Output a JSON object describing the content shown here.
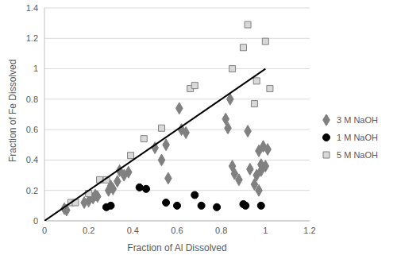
{
  "chart_data": {
    "type": "scatter",
    "x_label": "Fraction of Al Dissolved",
    "y_label": "Fraction of Fe Dissolved",
    "xlim": [
      0,
      1.2
    ],
    "xticks": [
      0,
      0.2,
      0.4,
      0.6,
      0.8,
      1,
      1.2
    ],
    "ylim": [
      0,
      1.4
    ],
    "yticks": [
      0,
      0.2,
      0.4,
      0.6,
      0.8,
      1,
      1.2,
      1.4
    ],
    "grid": true,
    "legend": "right",
    "series": [
      {
        "name": "3 M NaOH",
        "color": "#808080",
        "marker": "diamond",
        "x": [
          0.09,
          0.1,
          0.18,
          0.2,
          0.22,
          0.23,
          0.24,
          0.29,
          0.3,
          0.31,
          0.33,
          0.34,
          0.36,
          0.38,
          0.5,
          0.53,
          0.55,
          0.56,
          0.61,
          0.62,
          0.64,
          0.82,
          0.83,
          0.84,
          0.85,
          0.86,
          0.88,
          0.92,
          0.93,
          0.95,
          0.96,
          0.97,
          0.98,
          0.98,
          0.99,
          1.0,
          1.01,
          0.97
        ],
        "values": [
          0.08,
          0.07,
          0.12,
          0.13,
          0.15,
          0.17,
          0.16,
          0.2,
          0.23,
          0.21,
          0.26,
          0.33,
          0.3,
          0.32,
          0.48,
          0.4,
          0.5,
          0.28,
          0.74,
          0.6,
          0.58,
          0.67,
          0.61,
          0.8,
          0.36,
          0.31,
          0.27,
          0.59,
          0.34,
          0.24,
          0.3,
          0.2,
          0.33,
          0.37,
          0.49,
          0.36,
          0.47,
          0.46
        ]
      },
      {
        "name": "1 M NaOH",
        "color": "#000000",
        "marker": "circle",
        "x": [
          0.28,
          0.3,
          0.43,
          0.46,
          0.55,
          0.6,
          0.68,
          0.71,
          0.78,
          0.9,
          0.91,
          0.98
        ],
        "values": [
          0.09,
          0.1,
          0.22,
          0.21,
          0.12,
          0.1,
          0.17,
          0.1,
          0.09,
          0.11,
          0.1,
          0.1
        ]
      },
      {
        "name": "5 M NaOH",
        "color": "#d9d9d9",
        "marker": "square",
        "x": [
          0.12,
          0.14,
          0.2,
          0.25,
          0.28,
          0.39,
          0.45,
          0.53,
          0.66,
          0.68,
          0.85,
          0.9,
          0.92,
          0.95,
          0.96,
          1.0,
          1.02
        ],
        "values": [
          0.12,
          0.12,
          0.18,
          0.27,
          0.27,
          0.43,
          0.54,
          0.61,
          0.87,
          0.89,
          1.0,
          1.14,
          1.29,
          0.77,
          0.92,
          1.18,
          0.87
        ]
      },
      {
        "type": "line",
        "color": "#000000",
        "x": [
          0,
          1
        ],
        "values": [
          0,
          1
        ]
      }
    ]
  }
}
